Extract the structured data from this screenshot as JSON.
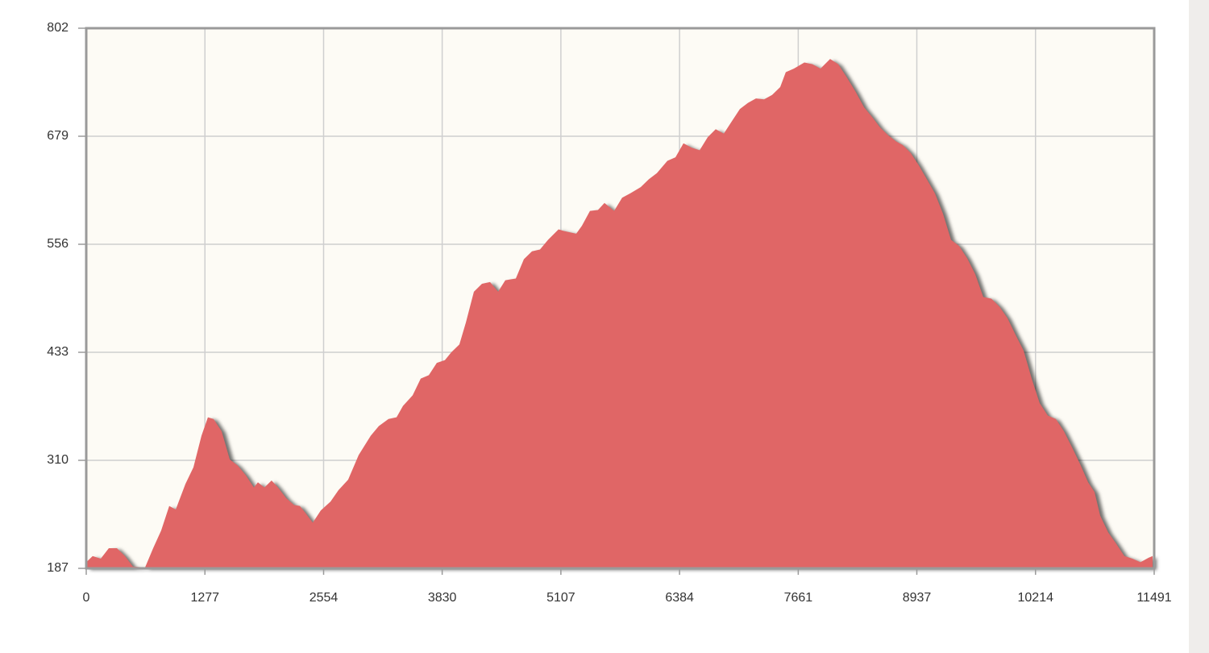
{
  "chart_data": {
    "type": "area",
    "x": [
      0,
      69,
      156,
      243,
      330,
      416,
      503,
      633,
      720,
      806,
      893,
      963,
      1067,
      1153,
      1240,
      1309,
      1370,
      1457,
      1544,
      1630,
      1717,
      1804,
      1847,
      1917,
      1994,
      2064,
      2151,
      2237,
      2298,
      2367,
      2437,
      2524,
      2628,
      2714,
      2818,
      2931,
      3061,
      3148,
      3252,
      3339,
      3408,
      3512,
      3599,
      3686,
      3772,
      3859,
      3928,
      4015,
      4085,
      4171,
      4258,
      4345,
      4432,
      4509,
      4622,
      4709,
      4796,
      4882,
      4969,
      5082,
      5142,
      5272,
      5333,
      5420,
      5506,
      5576,
      5680,
      5766,
      5853,
      5966,
      6053,
      6140,
      6253,
      6340,
      6426,
      6513,
      6600,
      6687,
      6773,
      6860,
      6946,
      7033,
      7120,
      7206,
      7293,
      7380,
      7467,
      7527,
      7614,
      7727,
      7813,
      7900,
      8004,
      8091,
      8178,
      8282,
      8369,
      8455,
      8542,
      8629,
      8715,
      8785,
      8871,
      8958,
      9045,
      9132,
      9218,
      9305,
      9392,
      9479,
      9565,
      9652,
      9739,
      9826,
      9912,
      9999,
      10086,
      10173,
      10259,
      10346,
      10433,
      10520,
      10606,
      10693,
      10780,
      10849,
      10910,
      10996,
      11083,
      11170,
      11257,
      11343,
      11430,
      11474
    ],
    "series": [
      {
        "color": "#e06666",
        "values": [
          194,
          201,
          198,
          210,
          210,
          201,
          189,
          188,
          210,
          230,
          258,
          254,
          283,
          302,
          338,
          359,
          357,
          343,
          311,
          304,
          293,
          279,
          285,
          279,
          287,
          279,
          267,
          259,
          258,
          249,
          239,
          253,
          263,
          276,
          288,
          316,
          338,
          349,
          357,
          359,
          372,
          384,
          403,
          407,
          421,
          424,
          433,
          442,
          467,
          502,
          511,
          513,
          502,
          515,
          517,
          539,
          548,
          550,
          561,
          573,
          571,
          568,
          577,
          594,
          595,
          603,
          594,
          609,
          614,
          621,
          630,
          637,
          651,
          655,
          671,
          666,
          663,
          678,
          687,
          682,
          696,
          710,
          717,
          722,
          721,
          726,
          735,
          752,
          756,
          763,
          761,
          756,
          767,
          761,
          747,
          729,
          712,
          701,
          689,
          680,
          673,
          669,
          660,
          646,
          630,
          614,
          591,
          561,
          554,
          540,
          522,
          496,
          494,
          485,
          472,
          453,
          435,
          403,
          375,
          361,
          357,
          343,
          325,
          306,
          285,
          274,
          247,
          228,
          215,
          201,
          198,
          194,
          199,
          201
        ]
      }
    ],
    "xlim": [
      0,
      11491
    ],
    "ylim": [
      187,
      802
    ],
    "xticks": [
      0,
      1277,
      2554,
      3830,
      5107,
      6384,
      7661,
      8937,
      10214,
      11491
    ],
    "yticks": [
      187,
      310,
      433,
      556,
      679,
      802
    ],
    "grid": true
  }
}
